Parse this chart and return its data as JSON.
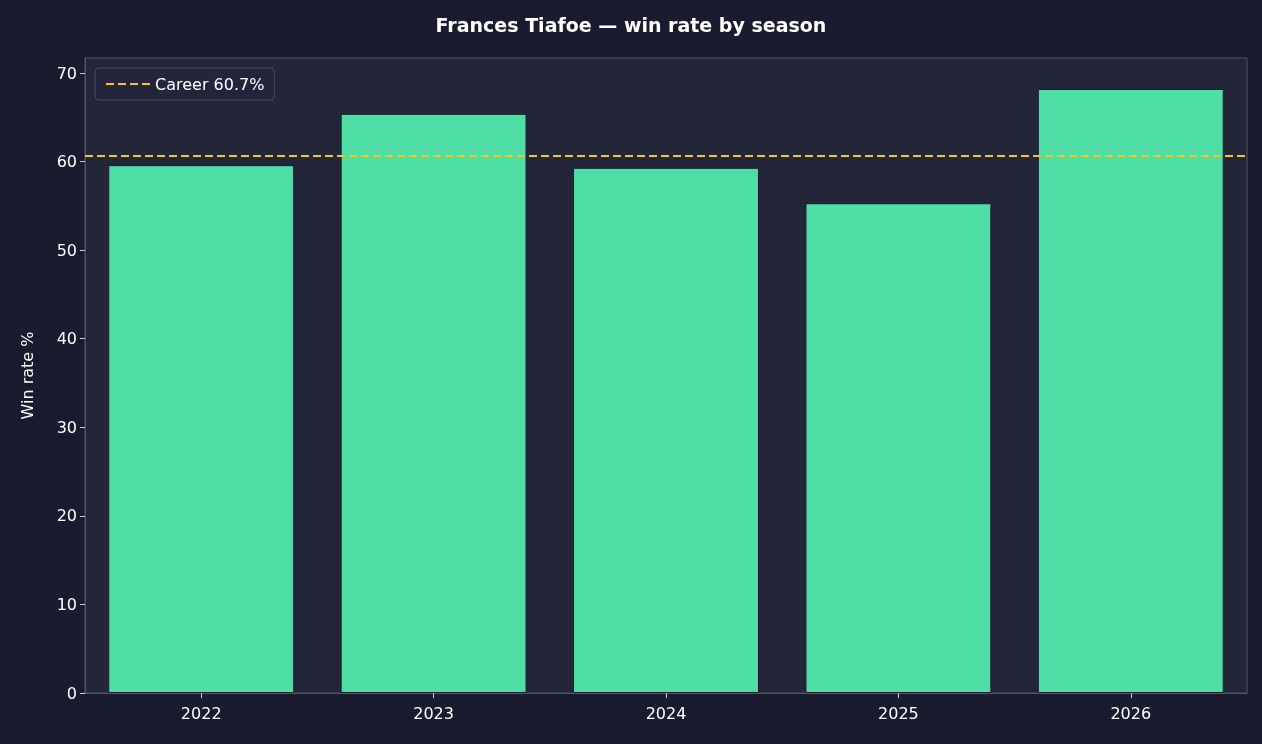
{
  "chart_data": {
    "type": "bar",
    "title": "Frances Tiafoe — win rate by season",
    "ylabel": "Win rate %",
    "categories": [
      "2022",
      "2023",
      "2024",
      "2025",
      "2026"
    ],
    "values": [
      59.6,
      65.4,
      59.3,
      55.3,
      68.2
    ],
    "color": "#4fdea5",
    "ylim": [
      0,
      71.7
    ],
    "yticks": [
      0,
      10,
      20,
      30,
      40,
      50,
      60,
      70
    ],
    "grid": false,
    "ref_lines": [
      {
        "axis": "y",
        "value": 60.7,
        "label": "Career 60.7%",
        "color": "#f5c518",
        "line_style": "dashed"
      }
    ],
    "legend": "top left"
  }
}
